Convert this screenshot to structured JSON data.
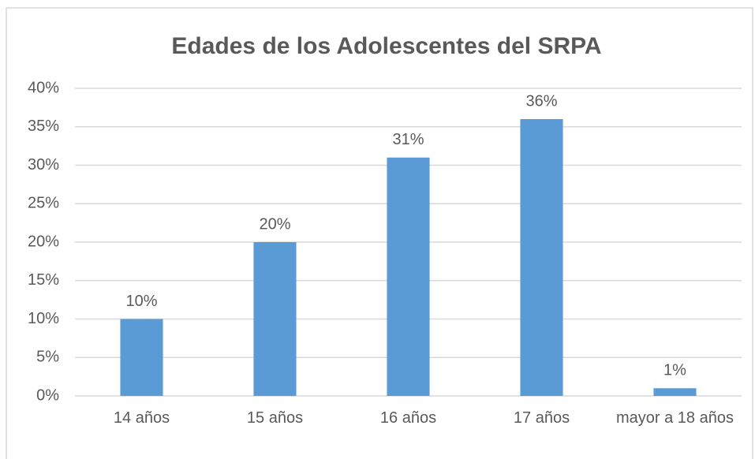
{
  "chart_data": {
    "type": "bar",
    "title": "Edades de los Adolescentes del SRPA",
    "categories": [
      "14 años",
      "15 años",
      "16 años",
      "17 años",
      "mayor a 18 años"
    ],
    "values": [
      10,
      20,
      31,
      36,
      1
    ],
    "value_labels": [
      "10%",
      "20%",
      "31%",
      "36%",
      "1%"
    ],
    "color": "#5b9bd5",
    "ylim": [
      0,
      40
    ],
    "yticks": [
      {
        "value": 0,
        "label": "0%"
      },
      {
        "value": 5,
        "label": "5%"
      },
      {
        "value": 10,
        "label": "10%"
      },
      {
        "value": 15,
        "label": "15%"
      },
      {
        "value": 20,
        "label": "20%"
      },
      {
        "value": 25,
        "label": "25%"
      },
      {
        "value": 30,
        "label": "30%"
      },
      {
        "value": 35,
        "label": "35%"
      },
      {
        "value": 40,
        "label": "40%"
      }
    ],
    "grid": true
  }
}
